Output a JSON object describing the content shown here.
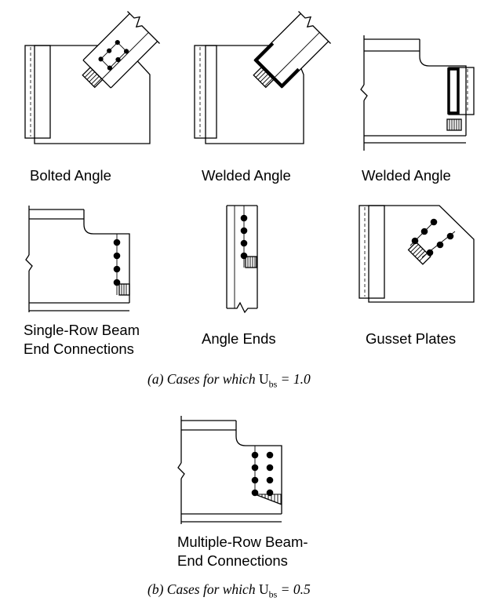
{
  "cases_a": {
    "bolted_angle": "Bolted Angle",
    "welded_angle_1": "Welded Angle",
    "welded_angle_2": "Welded Angle",
    "single_row_line1": "Single-Row Beam",
    "single_row_line2": "End Connections",
    "angle_ends": "Angle Ends",
    "gusset_plates": "Gusset Plates",
    "caption_prefix": "(a) Cases for which",
    "caption_symbol": "U",
    "caption_sub": "bs",
    "caption_value": "= 1.0"
  },
  "cases_b": {
    "multi_row_line1": "Multiple-Row Beam-",
    "multi_row_line2": "End Connections",
    "caption_prefix": "(b) Cases for which",
    "caption_symbol": "U",
    "caption_sub": "bs",
    "caption_value": "= 0.5"
  }
}
